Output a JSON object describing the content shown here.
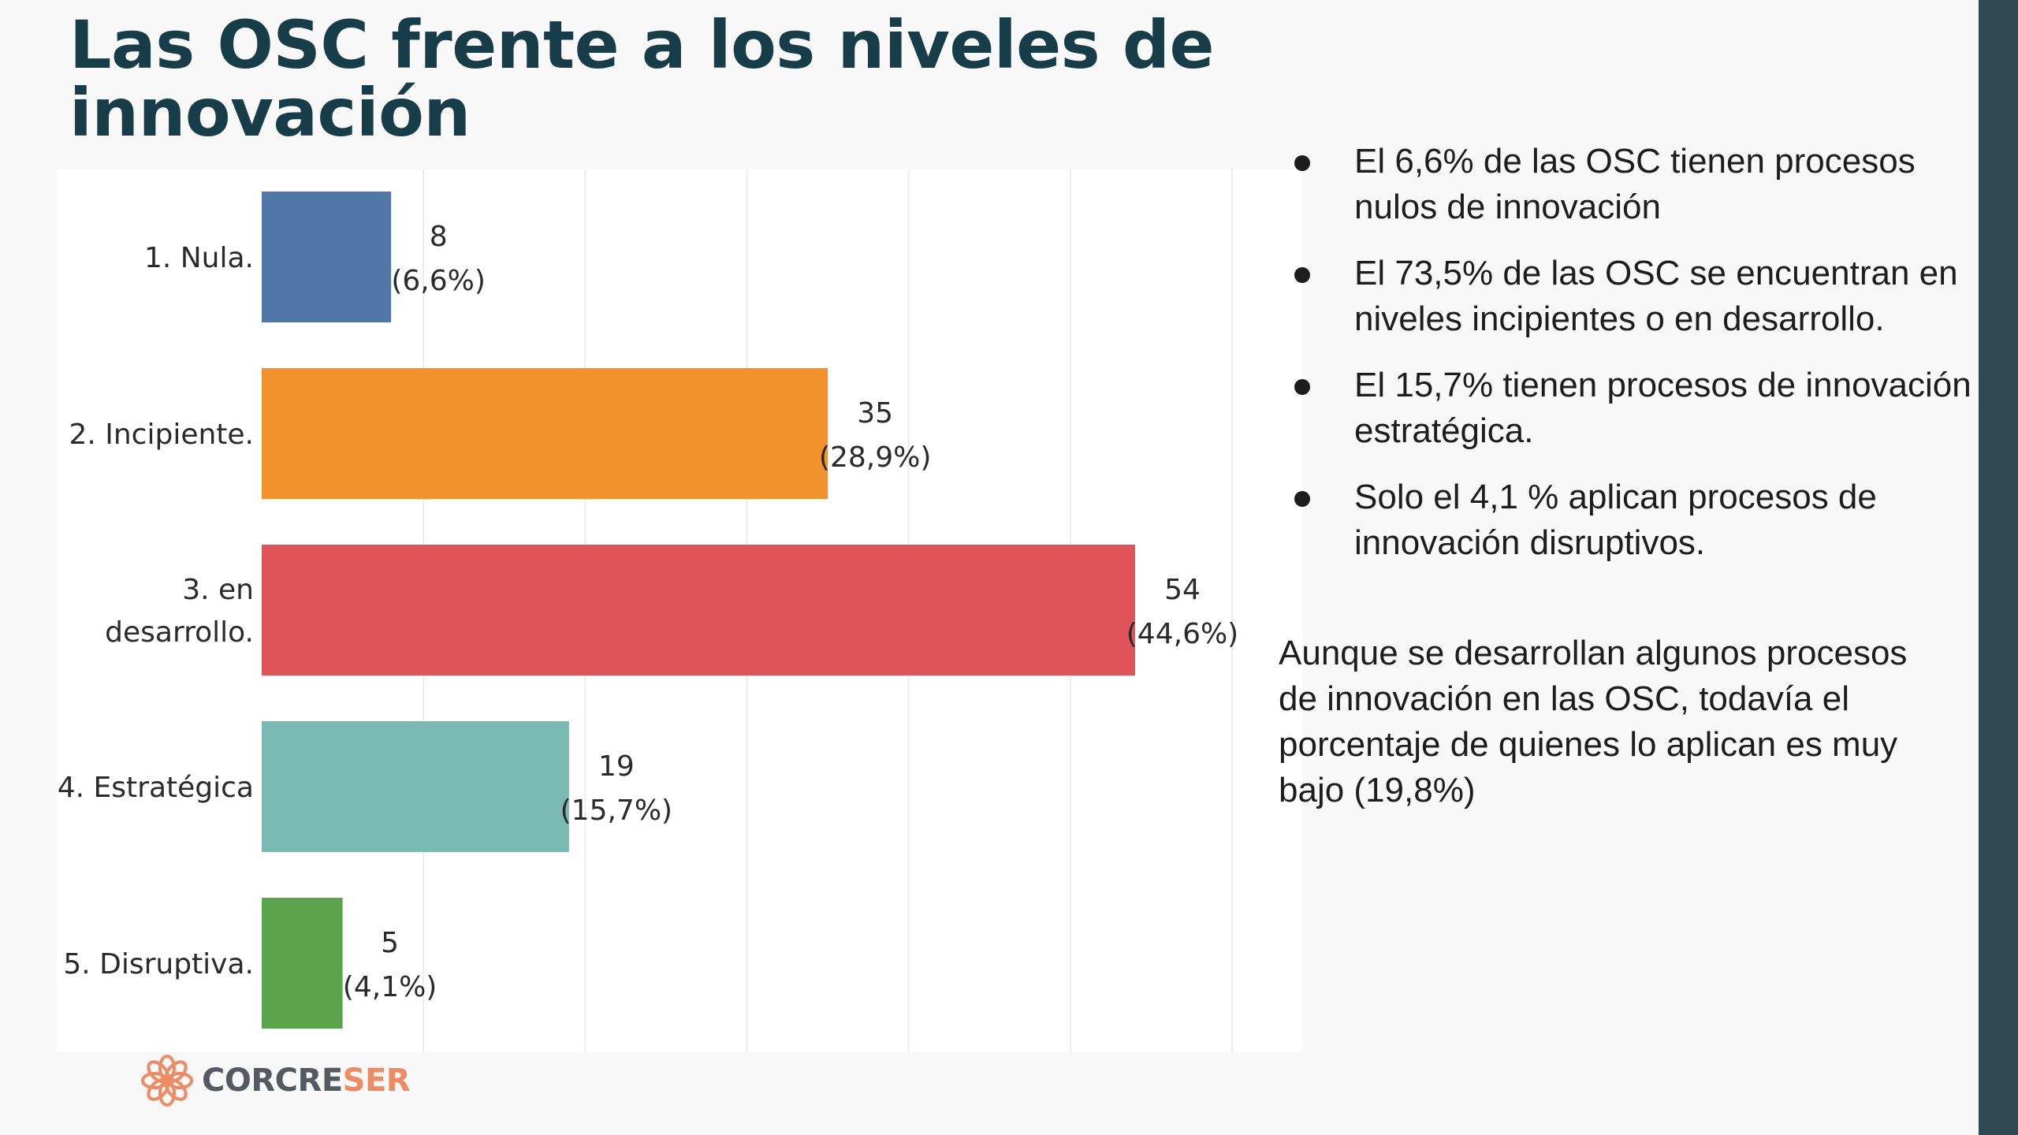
{
  "title": "Las OSC frente a los niveles de innovación",
  "chart_data": {
    "type": "bar",
    "orientation": "horizontal",
    "categories": [
      "1. Nula.",
      "2. Incipiente.",
      "3. en desarrollo.",
      "4. Estratégica",
      "5. Disruptiva."
    ],
    "category_lines": [
      [
        "1. Nula."
      ],
      [
        "2. Incipiente."
      ],
      [
        "3. en",
        "desarrollo."
      ],
      [
        "4. Estratégica"
      ],
      [
        "5. Disruptiva."
      ]
    ],
    "values": [
      8,
      35,
      54,
      19,
      5
    ],
    "percent_labels": [
      "(6,6%)",
      "(28,9%)",
      "(44,6%)",
      "(15,7%)",
      "(4,1%)"
    ],
    "colors": [
      "#5077a8",
      "#f3912d",
      "#e05459",
      "#7ab8b2",
      "#5ba34c"
    ],
    "xlim": [
      0,
      60
    ],
    "grid": true,
    "legend": "none",
    "title": "",
    "xlabel": "",
    "ylabel": ""
  },
  "bullets": [
    "El 6,6% de las OSC tienen procesos nulos de innovación",
    "El 73,5% de las OSC se encuentran en niveles incipientes o en desarrollo.",
    "El 15,7% tienen procesos de innovación estratégica.",
    "Solo el 4,1 % aplican procesos de innovación disruptivos."
  ],
  "conclusion": "Aunque se desarrollan algunos procesos de innovación en las OSC, todavía el porcentaje de quienes lo aplican es muy bajo (19,8%)",
  "logo": {
    "part1": "CORCRE",
    "part2": "SER",
    "icon": "flower-logo-icon",
    "icon_color": "#f08a62"
  },
  "accent_colors": {
    "title": "#173d49",
    "sidebar": "#2f4954"
  }
}
